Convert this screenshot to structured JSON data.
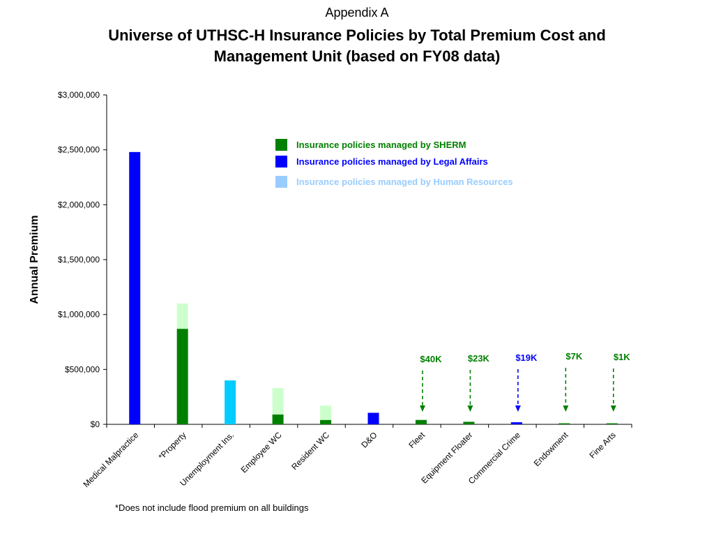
{
  "header": {
    "appendix": "Appendix A",
    "title_line1": "Universe of UTHSC-H Insurance Policies by Total Premium Cost and",
    "title_line2": "Management Unit (based on FY08 data)"
  },
  "footnote": "*Does not include flood premium on all buildings",
  "colors": {
    "sherm": "#008000",
    "sherm_light": "#ccffcc",
    "legal": "#0000ff",
    "hr": "#00ccff",
    "hr_legend": "#99ccff"
  },
  "chart_data": {
    "type": "bar",
    "stacked": true,
    "ylabel": "Annual Premium",
    "ylim": [
      0,
      3000000
    ],
    "yticks": [
      0,
      500000,
      1000000,
      1500000,
      2000000,
      2500000,
      3000000
    ],
    "ytick_labels": [
      "$0",
      "$500,000",
      "$1,000,000",
      "$1,500,000",
      "$2,000,000",
      "$2,500,000",
      "$3,000,000"
    ],
    "categories": [
      "Medical Malpractice",
      "*Property",
      "Unemployment Ins.",
      "Employee WC",
      "Resident WC",
      "D&O",
      "Fleet",
      "Equipment Floater",
      "Commercial Crime",
      "Endowment",
      "Fine Arts"
    ],
    "bars": [
      {
        "category": "Medical Malpractice",
        "segments": [
          {
            "value": 2480000,
            "color": "legal"
          }
        ]
      },
      {
        "category": "*Property",
        "segments": [
          {
            "value": 870000,
            "color": "sherm"
          },
          {
            "value": 230000,
            "color": "sherm_light"
          }
        ]
      },
      {
        "category": "Unemployment Ins.",
        "segments": [
          {
            "value": 400000,
            "color": "hr"
          }
        ]
      },
      {
        "category": "Employee WC",
        "segments": [
          {
            "value": 90000,
            "color": "sherm"
          },
          {
            "value": 240000,
            "color": "sherm_light"
          }
        ]
      },
      {
        "category": "Resident WC",
        "segments": [
          {
            "value": 40000,
            "color": "sherm"
          },
          {
            "value": 130000,
            "color": "sherm_light"
          }
        ]
      },
      {
        "category": "D&O",
        "segments": [
          {
            "value": 105000,
            "color": "legal"
          }
        ]
      },
      {
        "category": "Fleet",
        "segments": [
          {
            "value": 40000,
            "color": "sherm"
          }
        ]
      },
      {
        "category": "Equipment Floater",
        "segments": [
          {
            "value": 23000,
            "color": "sherm"
          }
        ]
      },
      {
        "category": "Commercial Crime",
        "segments": [
          {
            "value": 19000,
            "color": "legal"
          }
        ]
      },
      {
        "category": "Endowment",
        "segments": [
          {
            "value": 7000,
            "color": "sherm"
          }
        ]
      },
      {
        "category": "Fine Arts",
        "segments": [
          {
            "value": 1000,
            "color": "sherm"
          }
        ]
      }
    ],
    "legend": {
      "placement": "top-right",
      "entries": [
        {
          "label": "Insurance policies managed by SHERM",
          "color": "sherm"
        },
        {
          "label": "Insurance policies managed by Legal Affairs",
          "color": "legal"
        },
        {
          "label": "Insurance policies managed by Human Resources",
          "color": "hr_legend"
        }
      ]
    },
    "annotations": [
      {
        "category": "Fleet",
        "text": "$40K",
        "color": "sherm"
      },
      {
        "category": "Equipment Floater",
        "text": "$23K",
        "color": "sherm"
      },
      {
        "category": "Commercial Crime",
        "text": "$19K",
        "color": "legal"
      },
      {
        "category": "Endowment",
        "text": "$7K",
        "color": "sherm"
      },
      {
        "category": "Fine Arts",
        "text": "$1K",
        "color": "sherm"
      }
    ]
  }
}
